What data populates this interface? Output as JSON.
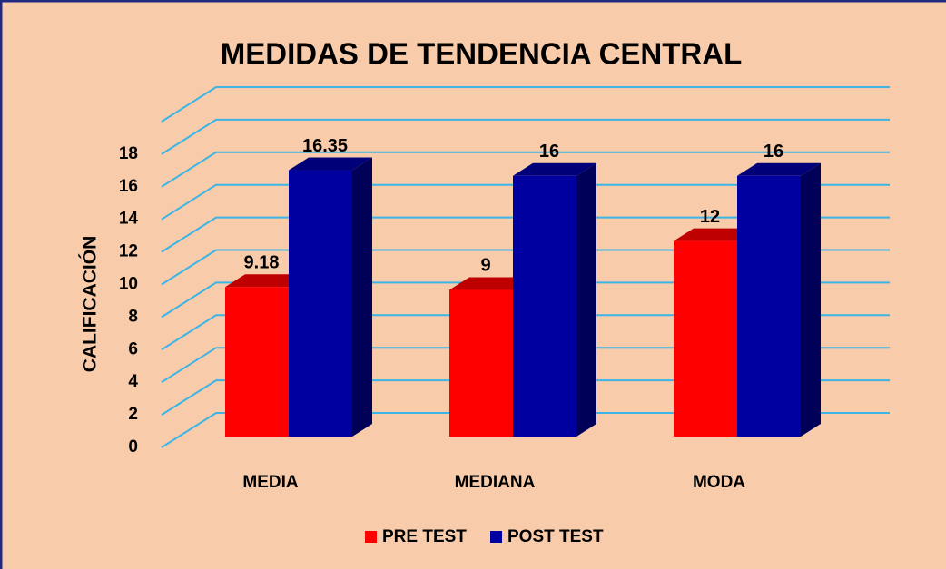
{
  "chart_data": {
    "type": "bar3d",
    "title": "MEDIDAS DE TENDENCIA CENTRAL",
    "y_label": "CALIFICACIÓN",
    "categories": [
      "MEDIA",
      "MEDIANA",
      "MODA"
    ],
    "series": [
      {
        "name": "PRE TEST",
        "color": "#ff0000",
        "values": [
          9.18,
          9,
          12
        ]
      },
      {
        "name": "POST TEST",
        "color": "#0000a0",
        "values": [
          16.35,
          16,
          16
        ]
      }
    ],
    "ylim": [
      0,
      20
    ],
    "yticks": [
      0,
      2,
      4,
      6,
      8,
      10,
      12,
      14,
      16,
      18
    ],
    "grid": true,
    "legend": "bottom"
  }
}
